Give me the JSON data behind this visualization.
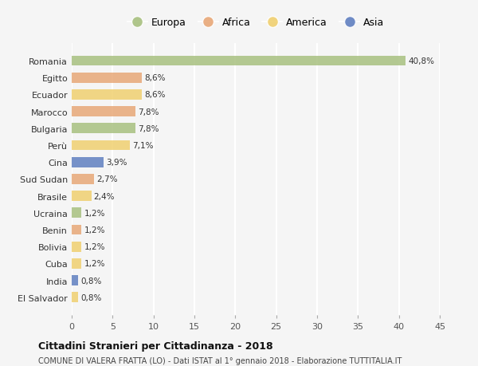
{
  "countries": [
    "Romania",
    "Egitto",
    "Ecuador",
    "Marocco",
    "Bulgaria",
    "Perù",
    "Cina",
    "Sud Sudan",
    "Brasile",
    "Ucraina",
    "Benin",
    "Bolivia",
    "Cuba",
    "India",
    "El Salvador"
  ],
  "values": [
    40.8,
    8.6,
    8.6,
    7.8,
    7.8,
    7.1,
    3.9,
    2.7,
    2.4,
    1.2,
    1.2,
    1.2,
    1.2,
    0.8,
    0.8
  ],
  "labels": [
    "40,8%",
    "8,6%",
    "8,6%",
    "7,8%",
    "7,8%",
    "7,1%",
    "3,9%",
    "2,7%",
    "2,4%",
    "1,2%",
    "1,2%",
    "1,2%",
    "1,2%",
    "0,8%",
    "0,8%"
  ],
  "continents": [
    "Europa",
    "Africa",
    "America",
    "Africa",
    "Europa",
    "America",
    "Asia",
    "Africa",
    "America",
    "Europa",
    "Africa",
    "America",
    "America",
    "Asia",
    "America"
  ],
  "colors": {
    "Europa": "#a8c080",
    "Africa": "#e8a878",
    "America": "#f0d070",
    "Asia": "#6080c0"
  },
  "legend_order": [
    "Europa",
    "Africa",
    "America",
    "Asia"
  ],
  "title": "Cittadini Stranieri per Cittadinanza - 2018",
  "subtitle": "COMUNE DI VALERA FRATTA (LO) - Dati ISTAT al 1° gennaio 2018 - Elaborazione TUTTITALIA.IT",
  "xlim": [
    0,
    45
  ],
  "xticks": [
    0,
    5,
    10,
    15,
    20,
    25,
    30,
    35,
    40,
    45
  ],
  "bg_color": "#f5f5f5",
  "grid_color": "#ffffff"
}
